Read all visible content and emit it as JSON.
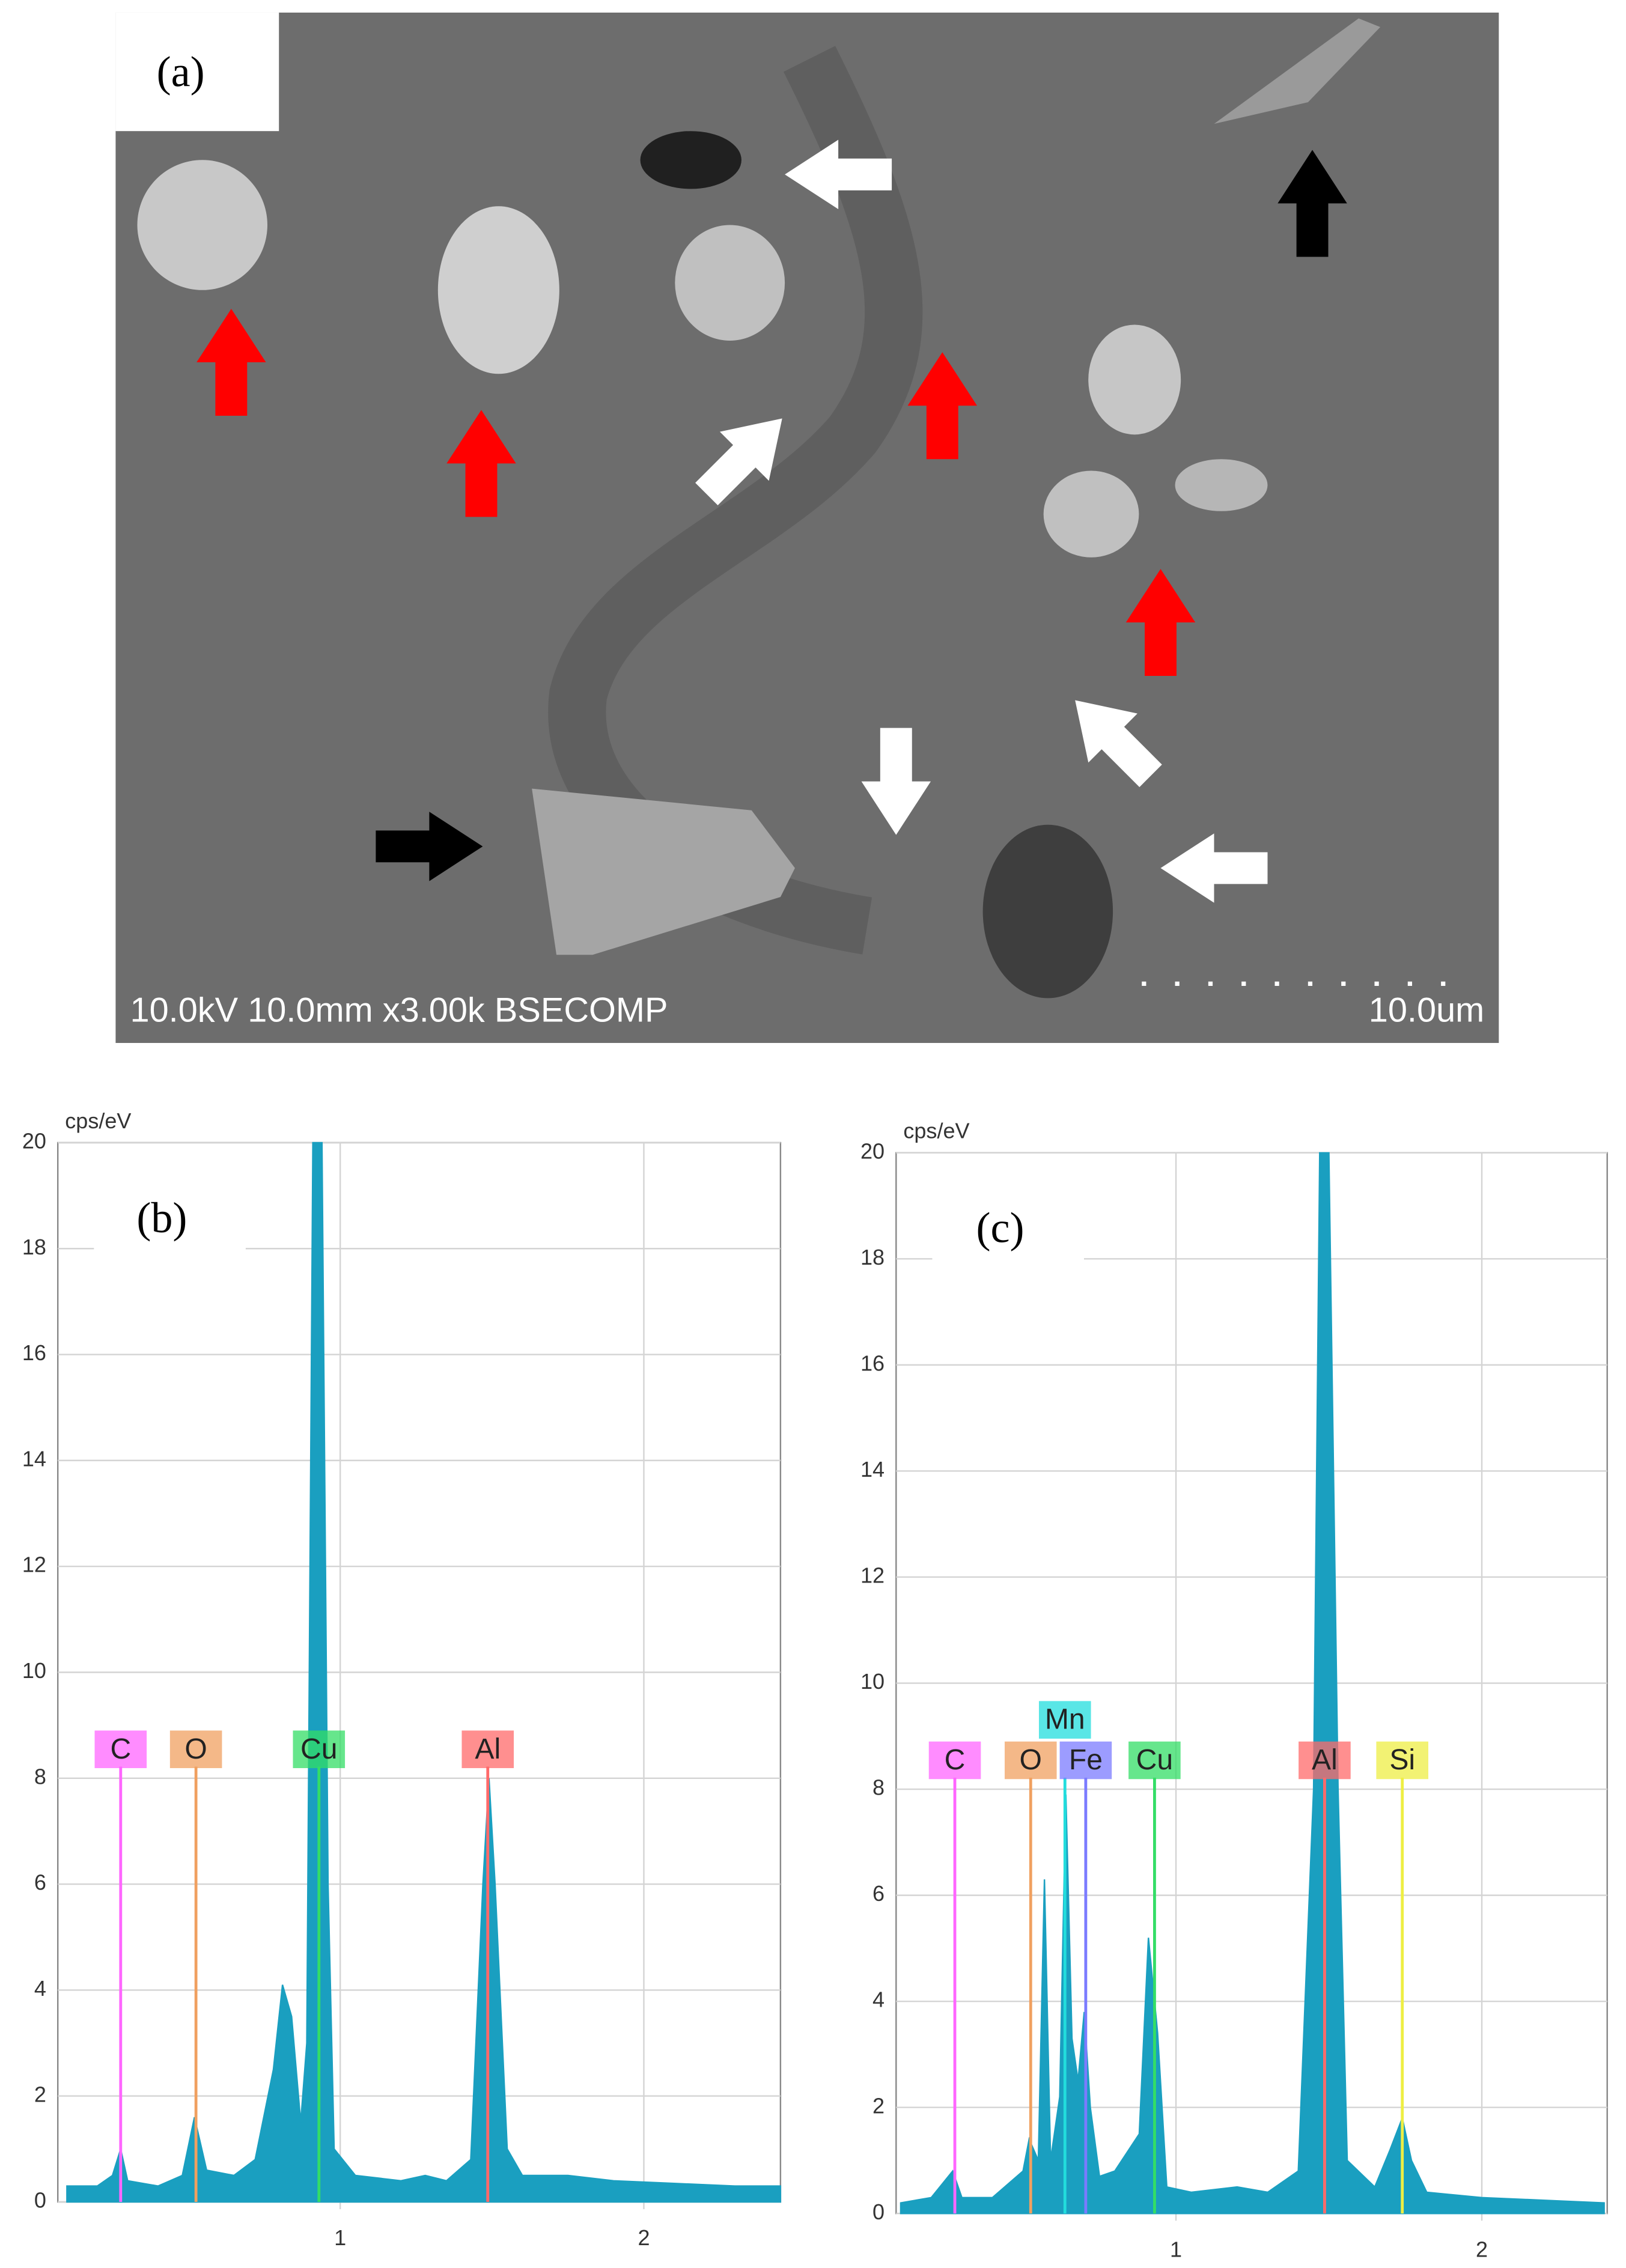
{
  "panel_a": {
    "label": "(a)",
    "info": "10.0kV 10.0mm x3.00k BSECOMP",
    "scale": "10.0um"
  },
  "chart_data": [
    {
      "type": "area",
      "panel_label": "(b)",
      "ylabel": "cps/eV",
      "color": "#1a9fc0",
      "x": [
        0.1,
        0.2,
        0.25,
        0.277,
        0.3,
        0.4,
        0.48,
        0.52,
        0.56,
        0.65,
        0.72,
        0.78,
        0.81,
        0.84,
        0.87,
        0.89,
        0.91,
        0.94,
        0.96,
        0.98,
        1.05,
        1.2,
        1.28,
        1.35,
        1.43,
        1.47,
        1.49,
        1.51,
        1.55,
        1.6,
        1.75,
        1.9,
        2.1,
        2.3,
        2.45
      ],
      "values": [
        0.3,
        0.3,
        0.5,
        1.0,
        0.4,
        0.3,
        0.5,
        1.6,
        0.6,
        0.5,
        0.8,
        2.5,
        4.1,
        3.5,
        1.5,
        3,
        20,
        20,
        6,
        1,
        0.5,
        0.4,
        0.5,
        0.4,
        0.8,
        6,
        8,
        6,
        1,
        0.5,
        0.5,
        0.4,
        0.35,
        0.3,
        0.3
      ],
      "xlim": [
        0.07,
        2.45
      ],
      "ylim": [
        0,
        20
      ],
      "xticks": [
        1,
        2
      ],
      "yticks": [
        0,
        2,
        4,
        6,
        8,
        10,
        12,
        14,
        16,
        18,
        20
      ],
      "grid": true,
      "markers": [
        {
          "label": "C",
          "x": 0.277,
          "color": "#ff66ff"
        },
        {
          "label": "O",
          "x": 0.525,
          "color": "#f0a060"
        },
        {
          "label": "Cu",
          "x": 0.93,
          "color": "#33dd66"
        },
        {
          "label": "Al",
          "x": 1.486,
          "color": "#ff6a6a"
        }
      ]
    },
    {
      "type": "area",
      "panel_label": "(c)",
      "ylabel": "cps/eV",
      "color": "#1a9fc0",
      "x": [
        0.1,
        0.2,
        0.27,
        0.3,
        0.4,
        0.5,
        0.52,
        0.55,
        0.57,
        0.59,
        0.62,
        0.64,
        0.66,
        0.68,
        0.7,
        0.72,
        0.75,
        0.8,
        0.88,
        0.91,
        0.94,
        0.97,
        1.05,
        1.2,
        1.3,
        1.4,
        1.45,
        1.47,
        1.5,
        1.53,
        1.56,
        1.65,
        1.7,
        1.74,
        1.77,
        1.82,
        2.0,
        2.2,
        2.4
      ],
      "values": [
        0.2,
        0.3,
        0.8,
        0.3,
        0.3,
        0.8,
        1.4,
        1.0,
        6.3,
        1,
        2.2,
        7.9,
        3.3,
        2.5,
        3.8,
        2,
        0.7,
        0.8,
        1.5,
        5.2,
        3.4,
        0.5,
        0.4,
        0.5,
        0.4,
        0.8,
        8,
        20,
        20,
        8,
        1,
        0.5,
        1.2,
        1.8,
        1,
        0.4,
        0.3,
        0.25,
        0.2
      ],
      "xlim": [
        0.085,
        2.41
      ],
      "ylim": [
        0,
        20
      ],
      "xticks": [
        1,
        2
      ],
      "yticks": [
        0,
        2,
        4,
        6,
        8,
        10,
        12,
        14,
        16,
        18,
        20
      ],
      "grid": true,
      "markers": [
        {
          "label": "C",
          "x": 0.277,
          "color": "#ff66ff"
        },
        {
          "label": "O",
          "x": 0.525,
          "color": "#f0a060"
        },
        {
          "label": "Mn",
          "x": 0.637,
          "color": "#22dddd"
        },
        {
          "label": "Fe",
          "x": 0.705,
          "color": "#7b7bff"
        },
        {
          "label": "Cu",
          "x": 0.93,
          "color": "#33dd66"
        },
        {
          "label": "Al",
          "x": 1.486,
          "color": "#ff6a6a"
        },
        {
          "label": "Si",
          "x": 1.74,
          "color": "#eeee44"
        }
      ]
    }
  ]
}
